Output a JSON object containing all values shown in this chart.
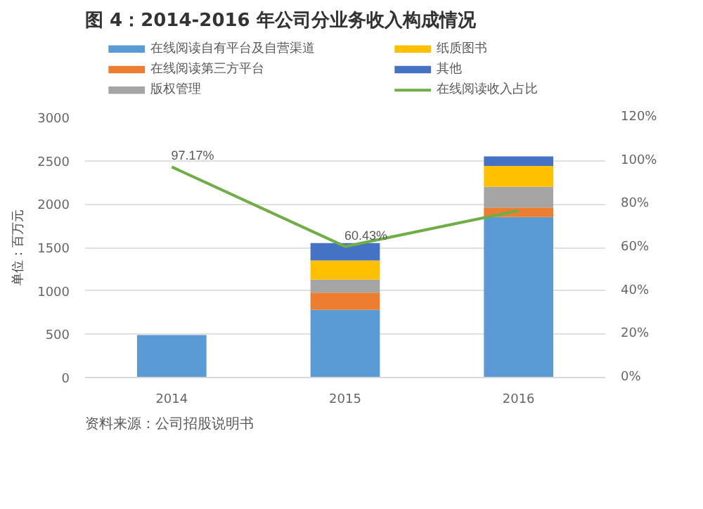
{
  "chart_data": {
    "type": "bar",
    "title": "图 4：2014-2016 年公司分业务收入构成情况",
    "ylabel": "单位：百万元",
    "stacked": true,
    "categories": [
      "2014",
      "2015",
      "2016"
    ],
    "series": [
      {
        "name": "在线阅读自有平台及自营渠道",
        "color": "#5b9bd5",
        "values": [
          490,
          780,
          1850
        ]
      },
      {
        "name": "在线阅读第三方平台",
        "color": "#ed7d31",
        "values": [
          null,
          200,
          110
        ]
      },
      {
        "name": "版权管理",
        "color": "#a5a5a5",
        "values": [
          null,
          150,
          240
        ]
      },
      {
        "name": "纸质图书",
        "color": "#ffc000",
        "values": [
          null,
          220,
          240
        ]
      },
      {
        "name": "其他",
        "color": "#4472c4",
        "values": [
          null,
          200,
          110
        ]
      },
      {
        "name": "在线阅读收入占比",
        "type": "line",
        "axis": "y2",
        "color": "#70ad47",
        "values": [
          97.17,
          60.43,
          77
        ],
        "value_labels": [
          "97.17%",
          "60.43%",
          null
        ]
      }
    ],
    "ylim": [
      0,
      3000
    ],
    "yticks": [
      0,
      500,
      1000,
      1500,
      2000,
      2500,
      3000
    ],
    "y2lim": [
      0,
      120
    ],
    "y2ticks": [
      {
        "value": 0,
        "label": "0%"
      },
      {
        "value": 20,
        "label": "20%"
      },
      {
        "value": 40,
        "label": "40%"
      },
      {
        "value": 60,
        "label": "60%"
      },
      {
        "value": 80,
        "label": "80%"
      },
      {
        "value": 100,
        "label": "100%"
      },
      {
        "value": 120,
        "label": "120%"
      }
    ],
    "grid": "y",
    "legend": "top",
    "annotations": [
      "资料来源：公司招股说明书"
    ]
  }
}
